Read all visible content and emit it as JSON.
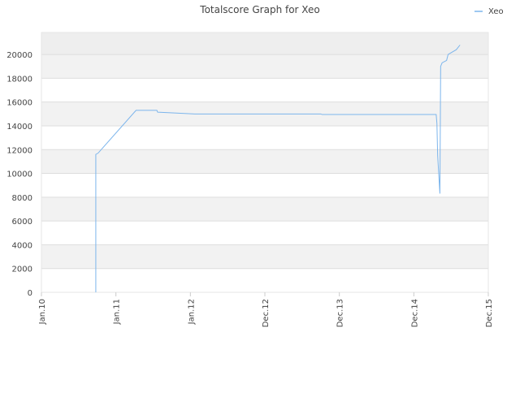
{
  "chart_data": {
    "type": "line",
    "title": "Totalscore Graph for Xeo",
    "x": [
      0.73,
      0.73,
      0.76,
      1.27,
      1.55,
      1.56,
      1.73,
      2.06,
      3.75,
      3.77,
      5.3,
      5.31,
      5.32,
      5.35,
      5.36,
      5.38,
      5.44,
      5.46,
      5.57,
      5.62
    ],
    "series": [
      {
        "name": "Xeo",
        "color": "#7cb5ec",
        "values": [
          0,
          11600,
          11700,
          15300,
          15300,
          15150,
          15100,
          15000,
          15000,
          14950,
          14950,
          14200,
          11500,
          8300,
          19000,
          19300,
          19500,
          20000,
          20400,
          20800
        ]
      }
    ],
    "xlim": [
      0,
      6
    ],
    "xticks": [
      {
        "value": 0,
        "label": "Jan.10"
      },
      {
        "value": 1,
        "label": "Jan.11"
      },
      {
        "value": 2,
        "label": "Jan.12"
      },
      {
        "value": 3,
        "label": "Dec.12"
      },
      {
        "value": 4,
        "label": "Dec.13"
      },
      {
        "value": 5,
        "label": "Dec.14"
      },
      {
        "value": 6,
        "label": "Dec.15"
      }
    ],
    "ylim": [
      0,
      21850
    ],
    "yticks": [
      0,
      2000,
      4000,
      6000,
      8000,
      10000,
      12000,
      14000,
      16000,
      18000,
      20000
    ],
    "grid": true,
    "legend": "top-right"
  }
}
